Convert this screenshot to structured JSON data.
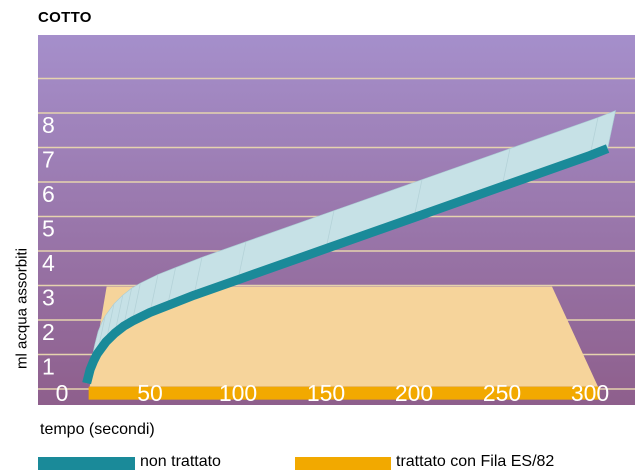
{
  "chart_data": {
    "type": "area",
    "title": "COTTO",
    "xlabel": "tempo (secondi)",
    "ylabel": "ml acqua assorbiti",
    "x_ticks": [
      "0",
      "50",
      "100",
      "150",
      "200",
      "250",
      "300"
    ],
    "y_ticks": [
      "1",
      "2",
      "3",
      "4",
      "5",
      "6",
      "7",
      "8"
    ],
    "xlim": [
      0,
      310
    ],
    "ylim": [
      0,
      9
    ],
    "grid": true,
    "legend": "bottom",
    "series": [
      {
        "name": "non trattato",
        "color": "#1a8a99",
        "x": [
          14,
          16,
          18,
          20,
          25,
          30,
          35,
          40,
          50,
          60,
          75,
          100,
          150,
          200,
          250,
          300,
          310
        ],
        "values": [
          0.4,
          0.8,
          1.05,
          1.25,
          1.6,
          1.85,
          2.05,
          2.2,
          2.45,
          2.65,
          2.95,
          3.4,
          4.3,
          5.2,
          6.1,
          7.0,
          7.2
        ]
      },
      {
        "name": "trattato con Fila ES/82",
        "color": "#f2a900",
        "x": [
          14,
          300
        ],
        "values": [
          0.4,
          0.4
        ]
      }
    ]
  },
  "colors": {
    "plot_bg_top": "#a58fcb",
    "plot_bg_bottom": "#8e5f8c",
    "gridline": "#e6d3ae",
    "ribbon_top": "#c6e1e6",
    "cream_area": "#f6d49b",
    "ribbon_edge": "#13868f",
    "treated_bar": "#f0a500"
  }
}
